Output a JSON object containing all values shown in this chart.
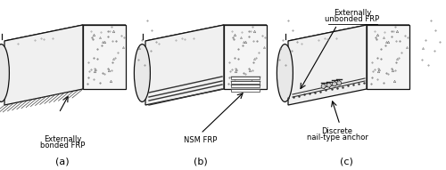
{
  "background_color": "#ffffff",
  "fig_width": 5.0,
  "fig_height": 1.91,
  "dpi": 100,
  "label_a": "(a)",
  "label_b": "(b)",
  "label_c": "(c)",
  "text_a1": "Externally",
  "text_a2": "bonded FRP",
  "text_b1": "NSM FRP",
  "text_c_top1": "Externally",
  "text_c_top2": "unbonded FRP",
  "text_c_bot1": "Discrete",
  "text_c_bot2": "nail-type anchor",
  "font_size_labels": 7,
  "font_size_sub": 6.0
}
